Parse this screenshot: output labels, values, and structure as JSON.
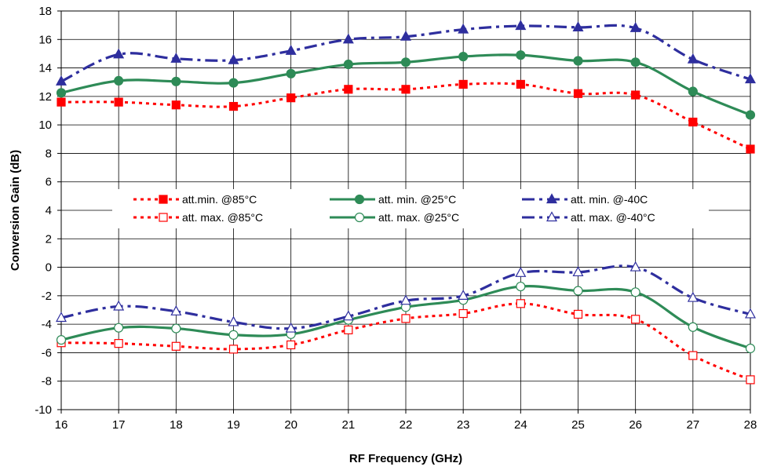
{
  "chart_data": {
    "type": "line",
    "title": "",
    "xlabel": "RF Frequency (GHz)",
    "ylabel": "Conversion Gain  (dB)",
    "xlim": [
      16,
      28
    ],
    "ylim": [
      -10,
      18
    ],
    "x_ticks": [
      "16",
      "17",
      "18",
      "19",
      "20",
      "21",
      "22",
      "23",
      "24",
      "25",
      "26",
      "27",
      "28"
    ],
    "y_ticks": [
      "-10",
      "-8",
      "-6",
      "-4",
      "-2",
      "0",
      "2",
      "4",
      "6",
      "8",
      "10",
      "12",
      "14",
      "16",
      "18"
    ],
    "grid": true,
    "legend_placement": "center (3 columns, 2 rows)",
    "x": [
      16,
      17,
      18,
      19,
      20,
      21,
      22,
      23,
      24,
      25,
      26,
      27,
      28
    ],
    "series": [
      {
        "name": "att.min. @85°C",
        "color": "#ff0000",
        "line": "dotted",
        "marker": "square-filled",
        "values": [
          11.6,
          11.6,
          11.4,
          11.3,
          11.9,
          12.5,
          12.5,
          12.85,
          12.85,
          12.2,
          12.1,
          10.2,
          8.3
        ]
      },
      {
        "name": "att. max. @85°C",
        "color": "#ff0000",
        "line": "dotted",
        "marker": "square-open",
        "values": [
          -5.3,
          -5.35,
          -5.55,
          -5.75,
          -5.45,
          -4.4,
          -3.6,
          -3.25,
          -2.55,
          -3.3,
          -3.65,
          -6.2,
          -7.9
        ]
      },
      {
        "name": "att. min. @25°C",
        "color": "#2e8b57",
        "line": "solid",
        "marker": "circle-filled",
        "values": [
          12.25,
          13.1,
          13.05,
          12.95,
          13.6,
          14.25,
          14.4,
          14.8,
          14.9,
          14.5,
          14.4,
          12.35,
          10.7
        ]
      },
      {
        "name": "att. max. @25°C",
        "color": "#2e8b57",
        "line": "solid",
        "marker": "circle-open",
        "values": [
          -5.1,
          -4.25,
          -4.3,
          -4.75,
          -4.7,
          -3.7,
          -2.8,
          -2.3,
          -1.35,
          -1.65,
          -1.75,
          -4.2,
          -5.7
        ]
      },
      {
        "name": "att. min. @-40C",
        "color": "#2e2e9e",
        "line": "dashdot",
        "marker": "triangle-filled",
        "values": [
          13.05,
          14.95,
          14.65,
          14.55,
          15.2,
          16.0,
          16.2,
          16.7,
          16.95,
          16.85,
          16.8,
          14.6,
          13.2
        ]
      },
      {
        "name": "att. max. @-40°C",
        "color": "#2e2e9e",
        "line": "dashdot",
        "marker": "triangle-open",
        "values": [
          -3.55,
          -2.75,
          -3.1,
          -3.85,
          -4.3,
          -3.45,
          -2.35,
          -2.0,
          -0.4,
          -0.35,
          0.0,
          -2.15,
          -3.3
        ]
      }
    ]
  }
}
